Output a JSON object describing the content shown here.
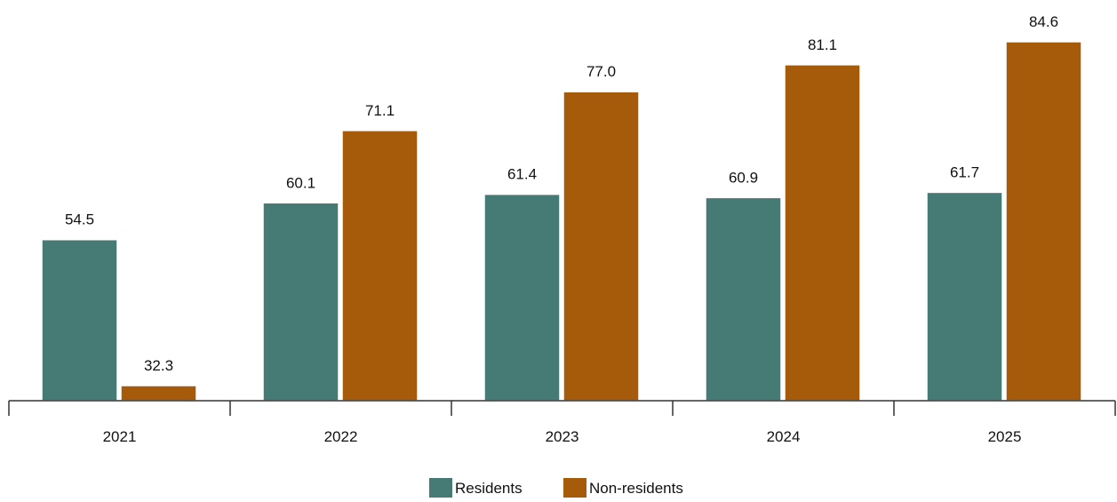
{
  "chart_data": {
    "type": "bar",
    "categories": [
      "2021",
      "2022",
      "2023",
      "2024",
      "2025"
    ],
    "series": [
      {
        "name": "Residents",
        "values": [
          54.5,
          60.1,
          61.4,
          60.9,
          61.7
        ],
        "labels": [
          "54.5",
          "60.1",
          "61.4",
          "60.9",
          "61.7"
        ],
        "color": "#457B74"
      },
      {
        "name": "Non-residents",
        "values": [
          32.3,
          71.1,
          77.0,
          81.1,
          84.6
        ],
        "labels": [
          "32.3",
          "71.1",
          "77.0",
          "81.1",
          "84.6"
        ],
        "color": "#A65B0A"
      }
    ],
    "title": "",
    "xlabel": "",
    "ylabel": "",
    "ylim": [
      30,
      90
    ],
    "grid": false,
    "legend": "bottom-center"
  }
}
